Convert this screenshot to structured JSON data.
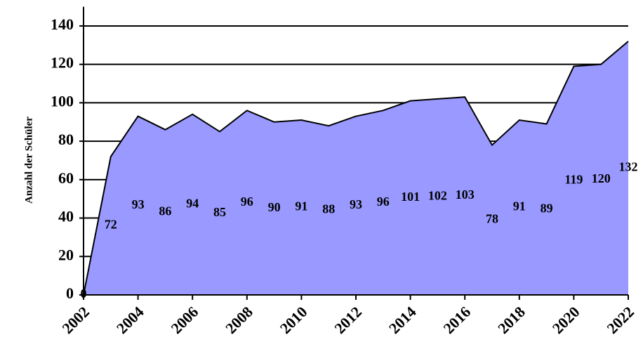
{
  "chart_data": {
    "type": "area",
    "y_label": "Anzahl der Schüler",
    "x": [
      2002,
      2003,
      2004,
      2005,
      2006,
      2007,
      2008,
      2009,
      2010,
      2011,
      2012,
      2013,
      2014,
      2015,
      2016,
      2017,
      2018,
      2019,
      2020,
      2021,
      2022
    ],
    "values": [
      0,
      72,
      93,
      86,
      94,
      85,
      96,
      90,
      91,
      88,
      93,
      96,
      101,
      102,
      103,
      78,
      91,
      89,
      119,
      120,
      132
    ],
    "color": "#9999ff",
    "xlim": [
      2002,
      2022
    ],
    "xticks": [
      2002,
      2004,
      2006,
      2008,
      2010,
      2012,
      2014,
      2016,
      2018,
      2020,
      2022
    ],
    "ylim": [
      0,
      150
    ],
    "yticks": [
      0,
      20,
      40,
      60,
      80,
      100,
      120,
      140
    ],
    "grid": true
  }
}
